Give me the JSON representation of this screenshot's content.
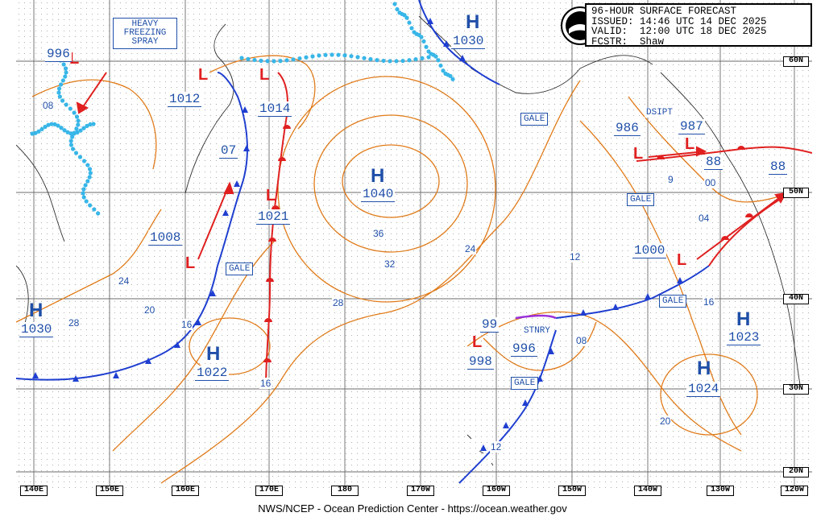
{
  "info": {
    "line1": "96-HOUR SURFACE FORECAST",
    "line2": "ISSUED: 14:46 UTC 14 DEC 2025",
    "line3": "VALID:  12:00 UTC 18 DEC 2025",
    "line4": "FCSTR:  Shaw",
    "logo_text": "NOAA"
  },
  "footer": "NWS/NCEP - Ocean Prediction Center - https://ocean.weather.gov",
  "spray": {
    "l1": "HEAVY",
    "l2": "FREEZING",
    "l3": "SPRAY"
  },
  "lon_labels": [
    "140E",
    "150E",
    "160E",
    "170E",
    "180",
    "170W",
    "160W",
    "150W",
    "140W",
    "130W",
    "120W"
  ],
  "lat_labels": [
    "60N",
    "50N",
    "40N",
    "30N",
    "20N"
  ],
  "highs": [
    {
      "letter": "H",
      "pressure": "1030"
    },
    {
      "letter": "H",
      "pressure": "1040"
    },
    {
      "letter": "H",
      "pressure": "1030"
    },
    {
      "letter": "H",
      "pressure": "1022"
    },
    {
      "letter": "H",
      "pressure": "1023"
    },
    {
      "letter": "H",
      "pressure": "1024"
    }
  ],
  "lows": [
    {
      "letter": "L",
      "pressure": "996"
    },
    {
      "letter": "L",
      "pressure": "1012"
    },
    {
      "letter": "L",
      "pressure": "1014"
    },
    {
      "letter": "L",
      "pressure": "1021"
    },
    {
      "letter": "L",
      "pressure": "1008"
    },
    {
      "letter": "L",
      "pressure": "986"
    },
    {
      "letter": "L",
      "pressure": "987"
    },
    {
      "letter": "L",
      "pressure": "1000"
    },
    {
      "letter": "L",
      "pressure": "998"
    },
    {
      "letter": "L",
      "pressure": "996"
    },
    {
      "letter": "L",
      "pressure": "99"
    },
    {
      "letter": "L",
      "pressure": "88"
    },
    {
      "letter": "L",
      "pressure": "88"
    }
  ],
  "labels": {
    "gale": "GALE",
    "dsipt": "DSIPT",
    "stnry": "STNRY",
    "front_07": "07",
    "iso_08": "08",
    "iso_36": "36",
    "iso_32": "32",
    "iso_28": "28",
    "iso_24": "24",
    "iso_20": "20",
    "iso_16": "16",
    "iso_12": "12",
    "iso_04": "04",
    "iso_00": "00",
    "iso_9": "9"
  }
}
